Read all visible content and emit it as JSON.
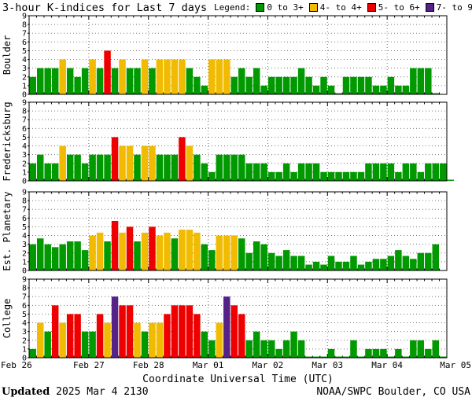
{
  "title": "3-hour K-indices for Last 7 days",
  "legend": {
    "label": "Legend:",
    "items": [
      {
        "label": "0 to 3+",
        "color": "#009900"
      },
      {
        "label": "4- to 4+",
        "color": "#f0bb00"
      },
      {
        "label": "5- to 6+",
        "color": "#ee0000"
      },
      {
        "label": "7- to 9",
        "color": "#552288"
      }
    ]
  },
  "footer": {
    "updated_label": "Updated",
    "updated_value": "2025 Mar  4 2130",
    "credit": "NOAA/SWPC Boulder, CO USA"
  },
  "chart_data": {
    "type": "bar",
    "xlabel": "Coordinate Universal Time (UTC)",
    "x_ticks": [
      "Feb 26",
      "Feb 27",
      "Feb 28",
      "Mar 01",
      "Mar 02",
      "Mar 03",
      "Mar 04",
      "Mar 05"
    ],
    "ylim": [
      0,
      9
    ],
    "y_ticks": [
      0,
      1,
      2,
      3,
      4,
      5,
      6,
      7,
      8,
      9
    ],
    "grid": true,
    "bins_per_day": 8,
    "panels": [
      {
        "name": "Boulder",
        "values": [
          2,
          3,
          3,
          3,
          4,
          3,
          2,
          3,
          4,
          3,
          5,
          3,
          4,
          3,
          3,
          4,
          3,
          4,
          4,
          4,
          4,
          3,
          2,
          1,
          4,
          4,
          4,
          2,
          3,
          2,
          3,
          1,
          2,
          2,
          2,
          2,
          3,
          2,
          1,
          2,
          1,
          0,
          2,
          2,
          2,
          2,
          1,
          1,
          2,
          1,
          1,
          3,
          3,
          3,
          0
        ]
      },
      {
        "name": "Fredericksburg",
        "values": [
          2,
          3,
          2,
          2,
          4,
          3,
          3,
          2,
          3,
          3,
          3,
          5,
          4,
          4,
          3,
          4,
          4,
          3,
          3,
          3,
          5,
          4,
          3,
          2,
          1,
          3,
          3,
          3,
          3,
          2,
          2,
          2,
          1,
          1,
          2,
          1,
          2,
          2,
          2,
          1,
          1,
          1,
          1,
          1,
          1,
          2,
          2,
          2,
          2,
          1,
          2,
          2,
          1,
          2,
          2,
          2,
          0
        ]
      },
      {
        "name": "Est. Planetary",
        "values": [
          3,
          3.67,
          3,
          2.67,
          3,
          3.33,
          3.33,
          2.33,
          4,
          4.33,
          3.33,
          5.67,
          4.33,
          5,
          3.33,
          4.33,
          5,
          4,
          4.33,
          3.67,
          4.67,
          4.67,
          4.33,
          3,
          2.33,
          4,
          4,
          4,
          3.67,
          2,
          3.33,
          3,
          2,
          1.67,
          2.33,
          1.67,
          1.67,
          0.67,
          1,
          0.67,
          1.67,
          1,
          1,
          1.67,
          0.67,
          1,
          1.33,
          1.33,
          1.67,
          2.33,
          1.67,
          1.33,
          2,
          2,
          3
        ]
      },
      {
        "name": "College",
        "values": [
          1,
          4,
          3,
          6,
          4,
          5,
          5,
          3,
          3,
          5,
          4,
          7,
          6,
          6,
          4,
          3,
          4,
          4,
          5,
          6,
          6,
          6,
          5,
          3,
          2,
          4,
          7,
          6,
          5,
          2,
          3,
          2,
          2,
          1,
          2,
          3,
          2,
          0,
          0,
          0,
          1,
          0,
          0,
          2,
          0,
          1,
          1,
          1,
          0,
          1,
          0,
          2,
          2,
          1,
          2,
          0
        ]
      }
    ]
  }
}
